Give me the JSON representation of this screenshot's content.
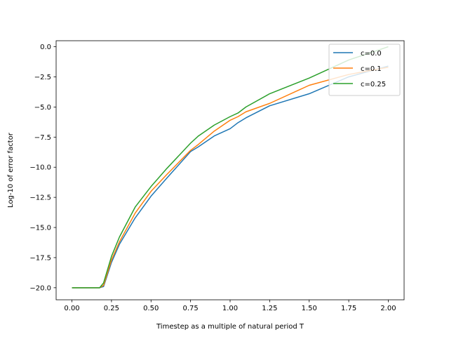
{
  "chart_data": {
    "type": "line",
    "xlabel": "Timestep as a multiple of natural period T",
    "ylabel": "Log-10 of error factor",
    "xlim": [
      -0.1,
      2.1
    ],
    "ylim": [
      -21.0,
      0.5
    ],
    "xticks": [
      0.0,
      0.25,
      0.5,
      0.75,
      1.0,
      1.25,
      1.5,
      1.75,
      2.0
    ],
    "xtick_labels": [
      "0.00",
      "0.25",
      "0.50",
      "0.75",
      "1.00",
      "1.25",
      "1.50",
      "1.75",
      "2.00"
    ],
    "yticks": [
      0.0,
      -2.5,
      -5.0,
      -7.5,
      -10.0,
      -12.5,
      -15.0,
      -17.5,
      -20.0
    ],
    "ytick_labels": [
      "0.0",
      "−2.5",
      "−5.0",
      "−7.5",
      "−10.0",
      "−12.5",
      "−15.0",
      "−17.5",
      "−20.0"
    ],
    "grid": false,
    "legend_position": "top-right",
    "series": [
      {
        "name": "c=0.0",
        "color": "#1f77b4",
        "x": [
          0.0,
          0.15,
          0.175,
          0.2,
          0.25,
          0.3,
          0.4,
          0.5,
          0.6,
          0.75,
          0.8,
          0.9,
          1.0,
          1.05,
          1.1,
          1.25,
          1.5,
          1.75,
          2.0
        ],
        "y": [
          -20.0,
          -20.0,
          -20.0,
          -19.9,
          -17.9,
          -16.4,
          -14.2,
          -12.4,
          -10.9,
          -8.7,
          -8.3,
          -7.4,
          -6.8,
          -6.3,
          -5.9,
          -4.9,
          -3.9,
          -2.5,
          -1.6
        ]
      },
      {
        "name": "c=0.1",
        "color": "#ff7f0e",
        "x": [
          0.0,
          0.15,
          0.175,
          0.2,
          0.25,
          0.3,
          0.4,
          0.5,
          0.6,
          0.75,
          0.8,
          0.9,
          1.0,
          1.05,
          1.1,
          1.25,
          1.5,
          1.75,
          2.0
        ],
        "y": [
          -20.0,
          -20.0,
          -20.0,
          -19.8,
          -17.7,
          -16.2,
          -13.8,
          -12.0,
          -10.6,
          -8.6,
          -8.1,
          -7.0,
          -6.1,
          -5.8,
          -5.4,
          -4.7,
          -3.2,
          -2.3,
          -1.7
        ]
      },
      {
        "name": "c=0.25",
        "color": "#2ca02c",
        "x": [
          0.0,
          0.15,
          0.175,
          0.2,
          0.25,
          0.3,
          0.4,
          0.5,
          0.6,
          0.75,
          0.8,
          0.9,
          1.0,
          1.05,
          1.1,
          1.25,
          1.5,
          1.75,
          2.0
        ],
        "y": [
          -20.0,
          -20.0,
          -20.0,
          -19.6,
          -17.4,
          -15.8,
          -13.3,
          -11.6,
          -10.1,
          -8.0,
          -7.4,
          -6.5,
          -5.8,
          -5.5,
          -5.0,
          -3.9,
          -2.6,
          -1.1,
          0.0
        ]
      }
    ]
  }
}
